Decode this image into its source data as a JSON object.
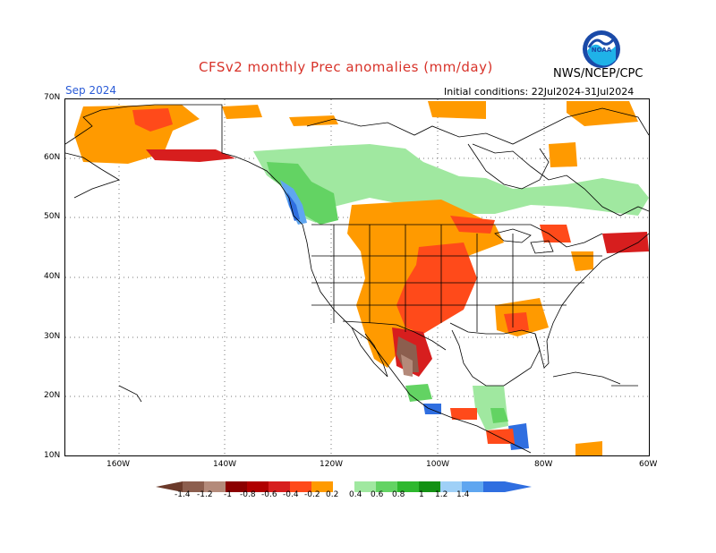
{
  "header": {
    "title": "CFSv2 monthly Prec anomalies (mm/day)",
    "agency": "NWS/NCEP/CPC",
    "month": "Sep 2024",
    "initial_conditions": "Initial conditions: 22Jul2024-31Jul2024",
    "logo_text": "NOAA"
  },
  "axes": {
    "lat_labels": [
      "70N",
      "60N",
      "50N",
      "40N",
      "30N",
      "20N",
      "10N"
    ],
    "lon_labels": [
      "160W",
      "140W",
      "120W",
      "100W",
      "80W",
      "60W"
    ]
  },
  "colorbar": {
    "labels": [
      "-1.4",
      "-1.2",
      "-1",
      "-0.8",
      "-0.6",
      "-0.4",
      "-0.2",
      "0.2",
      "0.4",
      "0.6",
      "0.8",
      "1",
      "1.2",
      "1.4"
    ],
    "colors": [
      "#6b3a2a",
      "#8c5e4e",
      "#b48a7a",
      "#8b0000",
      "#b00000",
      "#d71e1e",
      "#ff4a1a",
      "#ff9a00",
      "#ffffff",
      "#a0e8a0",
      "#63d363",
      "#2eb82e",
      "#139113",
      "#9fd0f7",
      "#5fa6f0",
      "#2f6ee0"
    ]
  }
}
